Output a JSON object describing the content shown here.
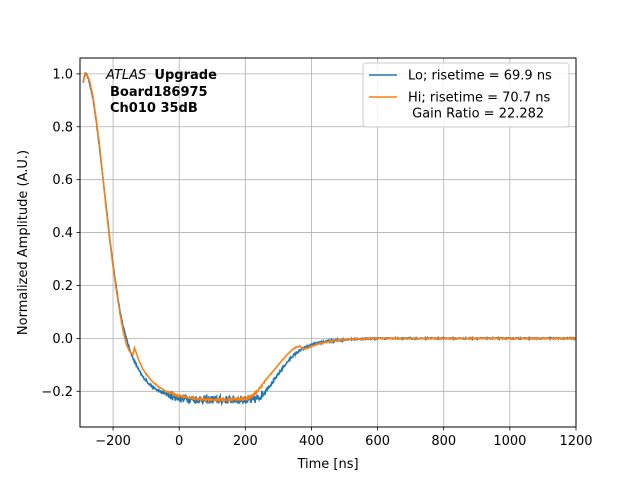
{
  "chart_data": {
    "type": "line",
    "xlabel": "Time [ns]",
    "ylabel": "Normalized Amplitude (A.U.)",
    "xlim": [
      -300,
      1200
    ],
    "ylim": [
      -0.335,
      1.06
    ],
    "xticks": [
      -200,
      0,
      200,
      400,
      600,
      800,
      1000,
      1200
    ],
    "xtick_labels": [
      "−200",
      "0",
      "200",
      "400",
      "600",
      "800",
      "1000",
      "1200"
    ],
    "yticks": [
      -0.2,
      0.0,
      0.2,
      0.4,
      0.6,
      0.8,
      1.0
    ],
    "ytick_labels": [
      "−0.2",
      "0.0",
      "0.2",
      "0.4",
      "0.6",
      "0.8",
      "1.0"
    ],
    "grid": true,
    "legend_position": "top-right",
    "annotation": {
      "experiment": "ATLAS",
      "tag": "Upgrade",
      "line2": "Board186975",
      "line3": "Ch010 35dB"
    },
    "series": [
      {
        "name": "Lo; risetime = 69.9 ns",
        "color": "#1f77b4",
        "noise": "high",
        "points": [
          [
            -290,
            0.97
          ],
          [
            -285,
            1.0
          ],
          [
            -278,
            0.995
          ],
          [
            -270,
            0.96
          ],
          [
            -260,
            0.9
          ],
          [
            -250,
            0.81
          ],
          [
            -240,
            0.71
          ],
          [
            -230,
            0.6
          ],
          [
            -220,
            0.49
          ],
          [
            -210,
            0.38
          ],
          [
            -200,
            0.28
          ],
          [
            -190,
            0.19
          ],
          [
            -180,
            0.11
          ],
          [
            -170,
            0.05
          ],
          [
            -160,
            0.0
          ],
          [
            -150,
            -0.04
          ],
          [
            -140,
            -0.075
          ],
          [
            -130,
            -0.1
          ],
          [
            -120,
            -0.125
          ],
          [
            -110,
            -0.145
          ],
          [
            -100,
            -0.16
          ],
          [
            -80,
            -0.185
          ],
          [
            -60,
            -0.2
          ],
          [
            -40,
            -0.21
          ],
          [
            -20,
            -0.218
          ],
          [
            0,
            -0.225
          ],
          [
            50,
            -0.23
          ],
          [
            100,
            -0.232
          ],
          [
            150,
            -0.232
          ],
          [
            200,
            -0.232
          ],
          [
            220,
            -0.236
          ],
          [
            240,
            -0.225
          ],
          [
            260,
            -0.2
          ],
          [
            280,
            -0.17
          ],
          [
            300,
            -0.135
          ],
          [
            320,
            -0.1
          ],
          [
            340,
            -0.07
          ],
          [
            360,
            -0.05
          ],
          [
            380,
            -0.035
          ],
          [
            400,
            -0.025
          ],
          [
            430,
            -0.015
          ],
          [
            470,
            -0.008
          ],
          [
            520,
            -0.003
          ],
          [
            600,
            0.0
          ],
          [
            700,
            0.0
          ],
          [
            800,
            0.0
          ],
          [
            900,
            0.0
          ],
          [
            1000,
            0.0
          ],
          [
            1100,
            0.0
          ],
          [
            1200,
            0.0
          ]
        ]
      },
      {
        "name": "Hi; risetime = 70.7 ns\n Gain Ratio = 22.282",
        "color": "#ff7f0e",
        "noise": "low",
        "points": [
          [
            -290,
            0.97
          ],
          [
            -285,
            1.0
          ],
          [
            -278,
            0.995
          ],
          [
            -270,
            0.97
          ],
          [
            -260,
            0.91
          ],
          [
            -250,
            0.82
          ],
          [
            -240,
            0.72
          ],
          [
            -230,
            0.6
          ],
          [
            -220,
            0.48
          ],
          [
            -210,
            0.37
          ],
          [
            -200,
            0.27
          ],
          [
            -190,
            0.18
          ],
          [
            -180,
            0.1
          ],
          [
            -170,
            0.03
          ],
          [
            -160,
            -0.02
          ],
          [
            -150,
            -0.05
          ],
          [
            -140,
            -0.06
          ],
          [
            -135,
            -0.035
          ],
          [
            -130,
            -0.055
          ],
          [
            -120,
            -0.09
          ],
          [
            -110,
            -0.115
          ],
          [
            -100,
            -0.135
          ],
          [
            -80,
            -0.165
          ],
          [
            -60,
            -0.185
          ],
          [
            -40,
            -0.2
          ],
          [
            -20,
            -0.21
          ],
          [
            0,
            -0.218
          ],
          [
            50,
            -0.228
          ],
          [
            100,
            -0.232
          ],
          [
            150,
            -0.232
          ],
          [
            200,
            -0.228
          ],
          [
            220,
            -0.218
          ],
          [
            240,
            -0.195
          ],
          [
            260,
            -0.16
          ],
          [
            280,
            -0.13
          ],
          [
            300,
            -0.1
          ],
          [
            320,
            -0.07
          ],
          [
            340,
            -0.045
          ],
          [
            355,
            -0.032
          ],
          [
            365,
            -0.03
          ],
          [
            375,
            -0.04
          ],
          [
            390,
            -0.035
          ],
          [
            410,
            -0.025
          ],
          [
            440,
            -0.015
          ],
          [
            480,
            -0.007
          ],
          [
            540,
            -0.002
          ],
          [
            600,
            0.0
          ],
          [
            800,
            0.0
          ],
          [
            1000,
            0.0
          ],
          [
            1200,
            0.0
          ]
        ]
      }
    ]
  }
}
